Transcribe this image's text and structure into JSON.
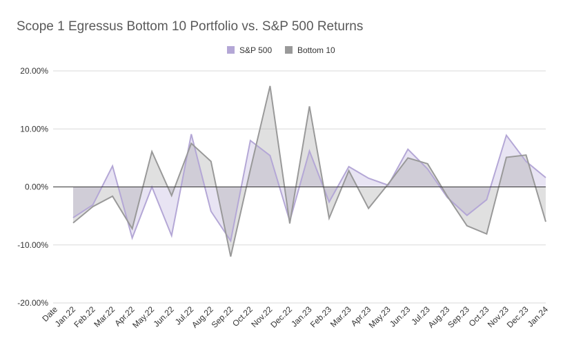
{
  "chart_data": {
    "type": "area",
    "title": "Scope 1 Egressus Bottom 10 Portfolio vs. S&P 500 Returns",
    "xlabel": "",
    "ylabel": "",
    "legend_position": "top-center",
    "grid": true,
    "ylim": [
      -0.2,
      0.2
    ],
    "y_ticks": [
      {
        "value": 0.2,
        "label": "20.00%"
      },
      {
        "value": 0.1,
        "label": "10.00%"
      },
      {
        "value": 0.0,
        "label": "0.00%"
      },
      {
        "value": -0.1,
        "label": "-10.00%"
      },
      {
        "value": -0.2,
        "label": "-20.00%"
      }
    ],
    "x_header": "Date",
    "categories": [
      "Jan.22",
      "Feb.22",
      "Mar.22",
      "Apr.22",
      "May.22",
      "Jun.22",
      "Jul.22",
      "Aug.22",
      "Sep.22",
      "Oct.22",
      "Nov.22",
      "Dec.22",
      "Jan.23",
      "Feb.23",
      "Mar.23",
      "Apr.23",
      "May.23",
      "Jun.23",
      "Jul.23",
      "Aug.23",
      "Sep.23",
      "Oct.23",
      "Nov.23",
      "Dec.23",
      "Jan.24"
    ],
    "series": [
      {
        "name": "S&P 500",
        "color": "#b4a7d6",
        "fill": "#b4a7d6",
        "values": [
          -0.053,
          -0.031,
          0.036,
          -0.088,
          0.0,
          -0.084,
          0.091,
          -0.042,
          -0.093,
          0.08,
          0.054,
          -0.059,
          0.062,
          -0.026,
          0.035,
          0.015,
          0.003,
          0.065,
          0.031,
          -0.018,
          -0.049,
          -0.022,
          0.089,
          0.044,
          0.016
        ]
      },
      {
        "name": "Bottom 10",
        "color": "#999999",
        "fill": "#999999",
        "values": [
          -0.062,
          -0.034,
          -0.016,
          -0.072,
          0.061,
          -0.015,
          0.075,
          0.044,
          -0.12,
          0.03,
          0.174,
          -0.063,
          0.139,
          -0.054,
          0.028,
          -0.037,
          0.005,
          0.05,
          0.04,
          -0.016,
          -0.067,
          -0.081,
          0.051,
          0.055,
          -0.06
        ]
      }
    ]
  }
}
